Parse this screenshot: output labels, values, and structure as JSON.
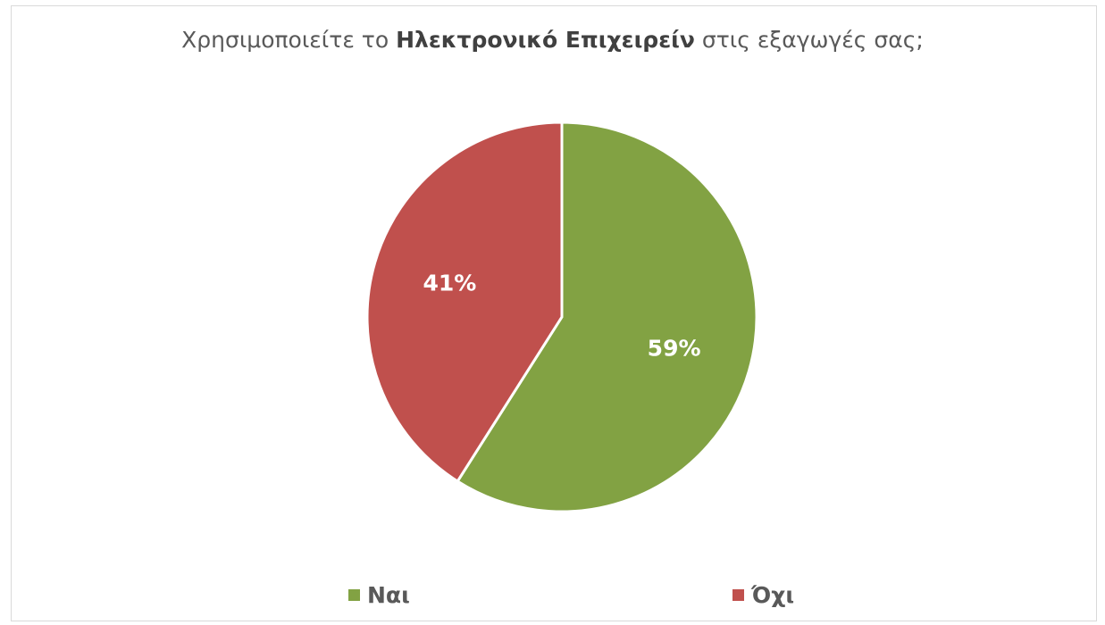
{
  "chart_data": {
    "type": "pie",
    "title": {
      "prefix": "Χρησιμοποιείτε το ",
      "emphasis": "Ηλεκτρονικό Επιχειρείν",
      "suffix": " στις εξαγωγές σας;"
    },
    "slices": [
      {
        "label": "Ναι",
        "value": 59,
        "value_label": "59%",
        "color": "#82a243"
      },
      {
        "label": "Όχι",
        "value": 41,
        "value_label": "41%",
        "color": "#c0504d"
      }
    ],
    "legend_position": "bottom"
  }
}
